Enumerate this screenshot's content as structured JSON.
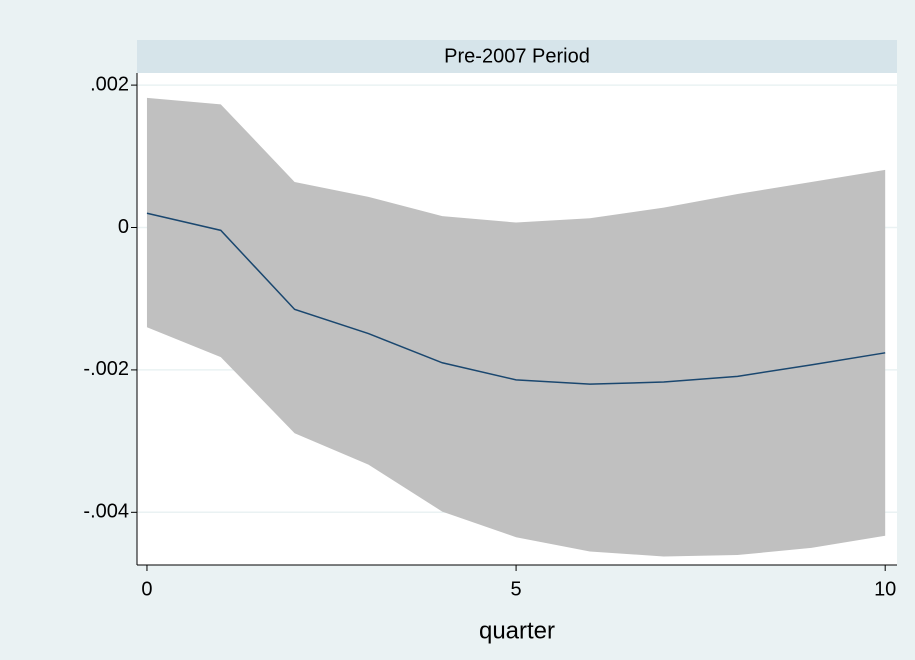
{
  "chart_data": {
    "type": "line-band",
    "title": "Pre-2007 Period",
    "x_label": "quarter",
    "x": [
      0,
      1,
      2,
      3,
      4,
      5,
      6,
      7,
      8,
      9,
      10
    ],
    "values": [
      0.0002,
      -4e-05,
      -0.00115,
      -0.00149,
      -0.0019,
      -0.00214,
      -0.0022,
      -0.00217,
      -0.00209,
      -0.00193,
      -0.00176
    ],
    "upper": [
      0.00182,
      0.00173,
      0.00064,
      0.00043,
      0.00016,
      7e-05,
      0.00013,
      0.00028,
      0.00047,
      0.00064,
      0.00081
    ],
    "lower": [
      -0.0014,
      -0.00182,
      -0.00289,
      -0.00333,
      -0.00399,
      -0.00435,
      -0.00455,
      -0.00462,
      -0.0046,
      -0.0045,
      -0.00433
    ],
    "color": "#1a476f",
    "band_color": "#c0c0c0",
    "xlim": [
      -0.135,
      10.16
    ],
    "ylim": [
      -0.00474,
      0.00217
    ],
    "xticks": [
      0,
      5,
      10
    ],
    "yticks": [
      {
        "value": 0.002,
        "label": ".002"
      },
      0,
      {
        "value": -0.002,
        "label": "-.002"
      },
      {
        "value": -0.004,
        "label": "-.004"
      }
    ],
    "grid": true
  }
}
